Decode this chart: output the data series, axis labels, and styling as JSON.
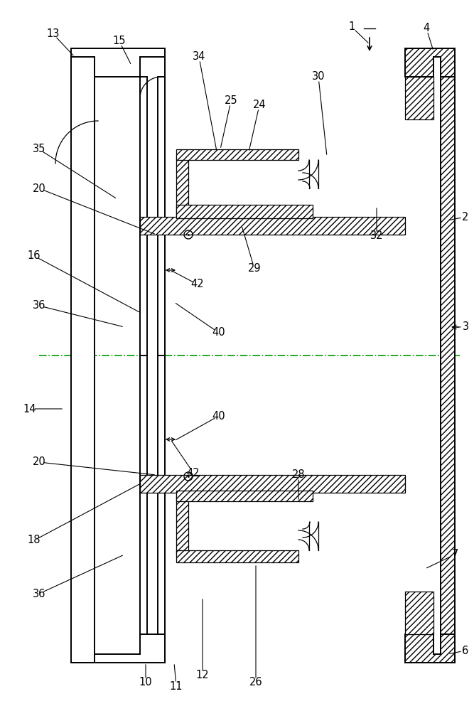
{
  "bg_color": "#ffffff",
  "line_color": "#000000",
  "center_line_color": "#009900",
  "fig_width": 6.67,
  "fig_height": 10.0,
  "lw_main": 1.4,
  "lw_thin": 0.9,
  "lw_xtra": 0.7,
  "hatch": "////",
  "label_fs": 10.5
}
